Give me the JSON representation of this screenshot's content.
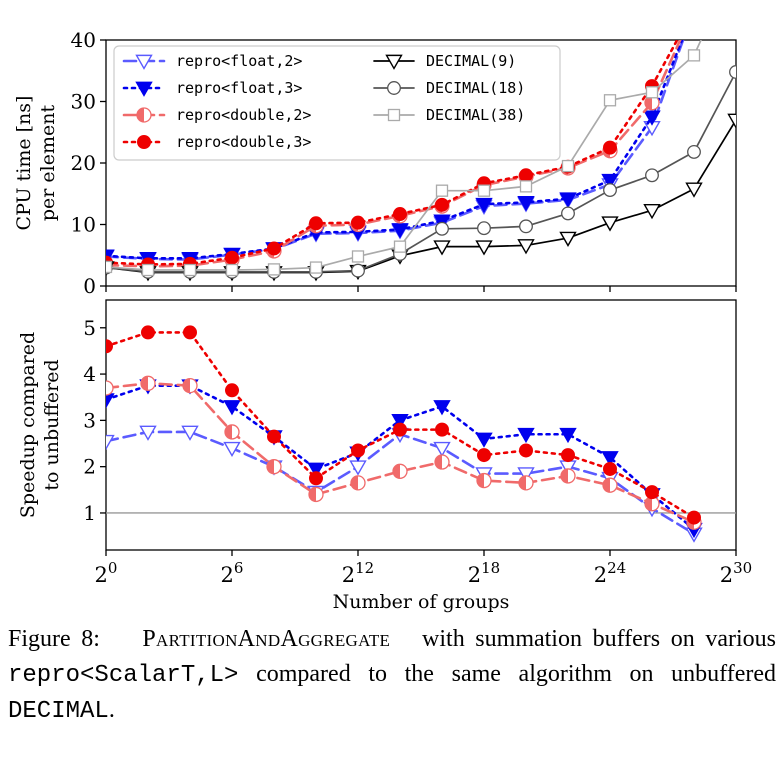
{
  "figure": {
    "panels": [
      {
        "ylabel_lines": [
          "CPU time [ns]",
          "per element"
        ]
      },
      {
        "ylabel_lines": [
          "Speedup compared",
          "to unbuffered"
        ]
      }
    ],
    "xlabel": "Number of groups",
    "xtick_base": "2",
    "xtick_exponents": [
      "0",
      "6",
      "12",
      "18",
      "24",
      "30"
    ],
    "top_yticks": [
      "0",
      "10",
      "20",
      "30",
      "40"
    ],
    "bottom_yticks": [
      "1",
      "2",
      "3",
      "4",
      "5"
    ]
  },
  "legend": {
    "left": [
      "repro<float,2>",
      "repro<float,3>",
      "repro<double,2>",
      "repro<double,3>"
    ],
    "right": [
      "DECIMAL(9)",
      "DECIMAL(18)",
      "DECIMAL(38)"
    ]
  },
  "caption": {
    "label": "Figure 8:",
    "algo": "PartitionAndAggregate",
    "text_1": "with summation buffers on various",
    "code_1": "repro<ScalarT,L>",
    "text_2": "compared to the same algorithm on unbuffered",
    "code_2": "DECIMAL",
    "text_3": "."
  },
  "chart_data": [
    {
      "type": "line",
      "xscale": "log2",
      "xlim": [
        0,
        30
      ],
      "ylim": [
        0,
        40
      ],
      "ylabel": "CPU time [ns] per element",
      "legend_position": "top-left",
      "series": [
        {
          "name": "repro<float,2>",
          "color": "#5b5bff",
          "style": "dashed",
          "marker": "triangle-down-open",
          "x": [
            0,
            2,
            4,
            6,
            8,
            10,
            12,
            14,
            16,
            18,
            20,
            22,
            24,
            26,
            28
          ],
          "y": [
            4.8,
            4.4,
            4.3,
            5.1,
            6.0,
            8.5,
            8.6,
            9.0,
            10.3,
            13.0,
            13.4,
            14.0,
            16.5,
            25.8,
            45
          ]
        },
        {
          "name": "repro<float,3>",
          "color": "#0000ee",
          "style": "dotted",
          "marker": "triangle-down",
          "x": [
            0,
            2,
            4,
            6,
            8,
            10,
            12,
            14,
            16,
            18,
            20,
            22,
            24,
            26,
            28
          ],
          "y": [
            4.9,
            4.5,
            4.5,
            5.2,
            6.1,
            8.7,
            8.8,
            9.2,
            10.6,
            13.3,
            13.6,
            14.2,
            17.2,
            27.5,
            45
          ]
        },
        {
          "name": "repro<double,2>",
          "color": "#f06a6a",
          "style": "dashed",
          "marker": "circle-half",
          "x": [
            0,
            2,
            4,
            6,
            8,
            10,
            12,
            14,
            16,
            18,
            20,
            22,
            24,
            26,
            28
          ],
          "y": [
            3.4,
            3.2,
            3.3,
            4.3,
            5.7,
            9.8,
            10.0,
            11.4,
            13.0,
            16.4,
            17.8,
            19.2,
            22.0,
            29.8,
            45
          ]
        },
        {
          "name": "repro<double,3>",
          "color": "#ee0000",
          "style": "dotted",
          "marker": "circle",
          "x": [
            0,
            2,
            4,
            6,
            8,
            10,
            12,
            14,
            16,
            18,
            20,
            22,
            24,
            26,
            28
          ],
          "y": [
            3.8,
            3.5,
            3.6,
            4.6,
            6.1,
            10.2,
            10.3,
            11.7,
            13.2,
            16.7,
            18.0,
            19.4,
            22.5,
            32.5,
            45
          ]
        },
        {
          "name": "DECIMAL(9)",
          "color": "#000000",
          "style": "solid",
          "marker": "triangle-down-open",
          "x": [
            0,
            2,
            4,
            6,
            8,
            10,
            12,
            14,
            16,
            18,
            20,
            22,
            24,
            26,
            28,
            30
          ],
          "y": [
            3.0,
            2.2,
            2.2,
            2.2,
            2.2,
            2.2,
            2.4,
            4.9,
            6.4,
            6.4,
            6.6,
            7.8,
            10.3,
            12.3,
            15.8,
            27.0
          ]
        },
        {
          "name": "DECIMAL(18)",
          "color": "#555555",
          "style": "solid",
          "marker": "circle-open",
          "x": [
            0,
            2,
            4,
            6,
            8,
            10,
            12,
            14,
            16,
            18,
            20,
            22,
            24,
            26,
            28,
            30
          ],
          "y": [
            3.0,
            2.3,
            2.3,
            2.3,
            2.3,
            2.3,
            2.5,
            5.2,
            9.3,
            9.4,
            9.7,
            11.8,
            15.6,
            18.0,
            21.8,
            34.8
          ]
        },
        {
          "name": "DECIMAL(38)",
          "color": "#aaaaaa",
          "style": "solid",
          "marker": "square-open",
          "x": [
            0,
            2,
            4,
            6,
            8,
            10,
            12,
            14,
            16,
            18,
            20,
            22,
            24,
            26,
            28,
            29
          ],
          "y": [
            3.1,
            2.6,
            2.6,
            2.6,
            2.7,
            3.0,
            4.8,
            6.4,
            15.5,
            15.5,
            16.2,
            19.5,
            30.2,
            31.5,
            37.5,
            45
          ]
        }
      ]
    },
    {
      "type": "line",
      "xscale": "log2",
      "xlim": [
        0,
        30
      ],
      "ylim": [
        0.2,
        5.6
      ],
      "ylabel": "Speedup compared to unbuffered",
      "xlabel": "Number of groups",
      "reference_line": 1,
      "series": [
        {
          "name": "repro<float,2>",
          "color": "#5b5bff",
          "style": "dashed",
          "marker": "triangle-down-open",
          "x": [
            0,
            2,
            4,
            6,
            8,
            10,
            12,
            14,
            16,
            18,
            20,
            22,
            24,
            26,
            28
          ],
          "y": [
            2.55,
            2.75,
            2.75,
            2.4,
            2.0,
            1.45,
            2.0,
            2.7,
            2.4,
            1.85,
            1.85,
            2.0,
            1.75,
            1.1,
            0.55
          ]
        },
        {
          "name": "repro<float,3>",
          "color": "#0000ee",
          "style": "dotted",
          "marker": "triangle-down",
          "x": [
            0,
            2,
            4,
            6,
            8,
            10,
            12,
            14,
            16,
            18,
            20,
            22,
            24,
            26,
            28
          ],
          "y": [
            3.45,
            3.75,
            3.75,
            3.3,
            2.65,
            1.95,
            2.3,
            3.0,
            3.3,
            2.6,
            2.7,
            2.7,
            2.2,
            1.4,
            0.65
          ]
        },
        {
          "name": "repro<double,2>",
          "color": "#f06a6a",
          "style": "dashed",
          "marker": "circle-half",
          "x": [
            0,
            2,
            4,
            6,
            8,
            10,
            12,
            14,
            16,
            18,
            20,
            22,
            24,
            26,
            28
          ],
          "y": [
            3.7,
            3.8,
            3.75,
            2.75,
            2.0,
            1.4,
            1.65,
            1.9,
            2.1,
            1.7,
            1.65,
            1.8,
            1.6,
            1.2,
            0.8
          ]
        },
        {
          "name": "repro<double,3>",
          "color": "#ee0000",
          "style": "dotted",
          "marker": "circle",
          "x": [
            0,
            2,
            4,
            6,
            8,
            10,
            12,
            14,
            16,
            18,
            20,
            22,
            24,
            26,
            28
          ],
          "y": [
            4.6,
            4.9,
            4.9,
            3.65,
            2.65,
            1.75,
            2.35,
            2.8,
            2.8,
            2.25,
            2.35,
            2.25,
            1.95,
            1.45,
            0.9
          ]
        }
      ]
    }
  ]
}
